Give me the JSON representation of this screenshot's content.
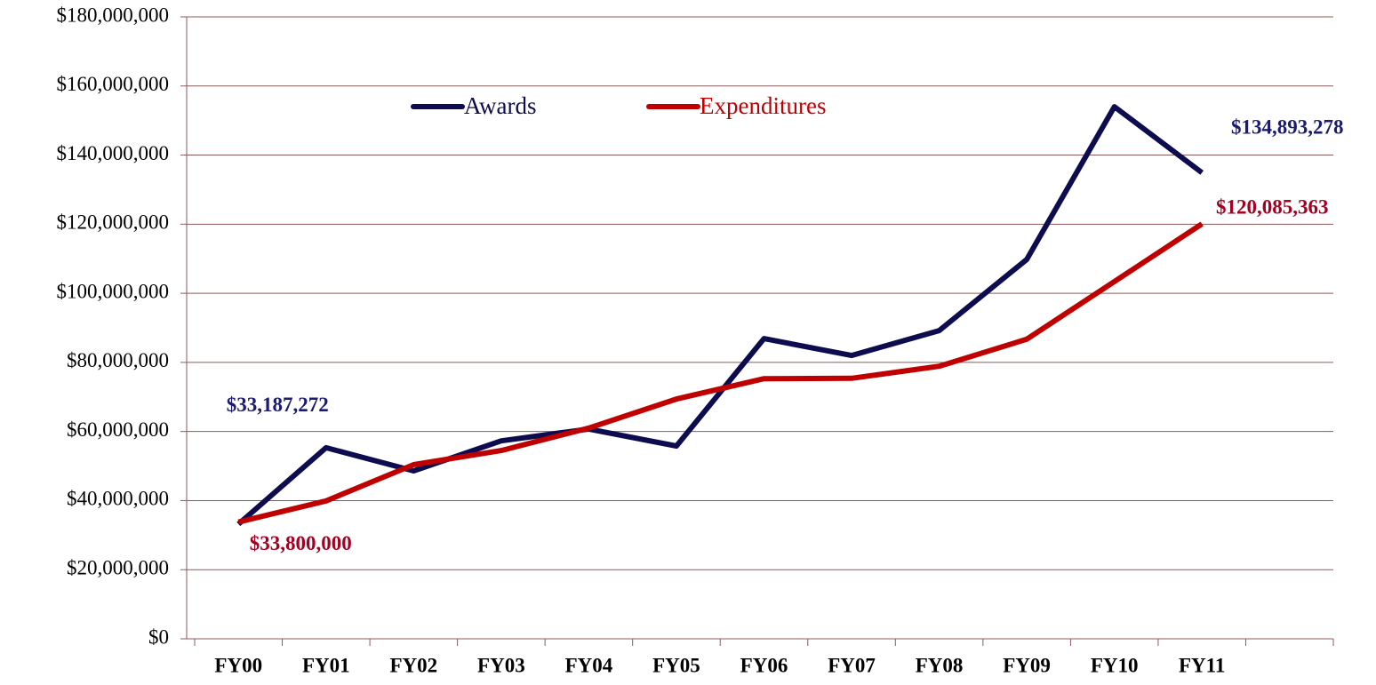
{
  "chart_data": {
    "type": "line",
    "categories": [
      "FY00",
      "FY01",
      "FY02",
      "FY03",
      "FY04",
      "FY05",
      "FY06",
      "FY07",
      "FY08",
      "FY09",
      "FY10",
      "FY11",
      null
    ],
    "series": [
      {
        "name": "Awards",
        "color": "#0c0c4e",
        "values": [
          33187272,
          55300000,
          48600000,
          57300000,
          60700000,
          55800000,
          86900000,
          82000000,
          89200000,
          109800000,
          154000000,
          134893278,
          null
        ],
        "value_labels": [
          "$33,187,272",
          null,
          null,
          null,
          null,
          null,
          null,
          null,
          null,
          null,
          null,
          "$134,893,278",
          null
        ],
        "label_color": "#1b1b72"
      },
      {
        "name": "Expenditures",
        "color": "#c00000",
        "values": [
          33800000,
          39900000,
          50400000,
          54500000,
          61000000,
          69400000,
          75300000,
          75400000,
          78900000,
          86700000,
          103400000,
          120085363,
          null
        ],
        "value_labels": [
          "$33,800,000",
          null,
          null,
          null,
          null,
          null,
          null,
          null,
          null,
          null,
          null,
          "$120,085,363",
          null
        ],
        "label_color": "#a50021"
      }
    ],
    "ylim": [
      0,
      180000000
    ],
    "yticks": [
      {
        "value": 0,
        "label": "$0"
      },
      {
        "value": 20000000,
        "label": "$20,000,000"
      },
      {
        "value": 40000000,
        "label": "$40,000,000"
      },
      {
        "value": 60000000,
        "label": "$60,000,000"
      },
      {
        "value": 80000000,
        "label": "$80,000,000"
      },
      {
        "value": 100000000,
        "label": "$100,000,000"
      },
      {
        "value": 120000000,
        "label": "$120,000,000"
      },
      {
        "value": 140000000,
        "label": "$140,000,000"
      },
      {
        "value": 160000000,
        "label": "$160,000,000"
      },
      {
        "value": 180000000,
        "label": "$180,000,000"
      }
    ],
    "grid": true,
    "grid_color": "#8c5a5a",
    "legend": "top"
  }
}
